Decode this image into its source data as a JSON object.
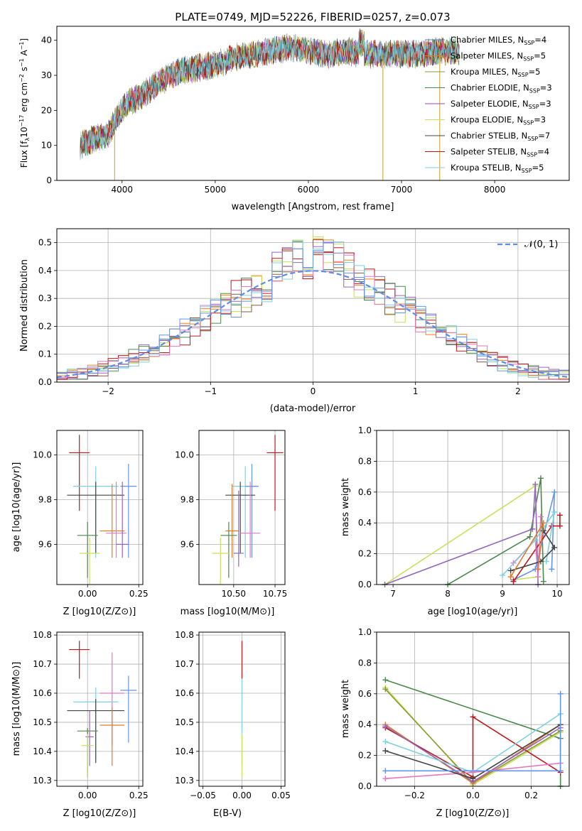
{
  "chart_data": [
    {
      "type": "line",
      "title": "PLATE=0749, MJD=52226, FIBERID=0257, z=0.073",
      "xlabel": "wavelength [Angstrom, rest frame]",
      "ylabel": "Flux [f_λ 10^-17 erg cm^-2 s^-1 A^-1]",
      "xlim": [
        3300,
        8800
      ],
      "ylim": [
        0,
        44
      ],
      "xticks": [
        "4000",
        "5000",
        "6000",
        "7000",
        "8000"
      ],
      "yticks": [
        "0",
        "10",
        "20",
        "30",
        "40"
      ],
      "continuum_anchors": [
        [
          3550,
          10
        ],
        [
          3700,
          12
        ],
        [
          3850,
          13
        ],
        [
          3950,
          18
        ],
        [
          4050,
          22
        ],
        [
          4200,
          24
        ],
        [
          4400,
          28
        ],
        [
          4600,
          31
        ],
        [
          4800,
          32
        ],
        [
          5000,
          33
        ],
        [
          5200,
          35
        ],
        [
          5400,
          36
        ],
        [
          5600,
          37
        ],
        [
          5800,
          38
        ],
        [
          6000,
          37
        ],
        [
          6200,
          36
        ],
        [
          6400,
          37
        ],
        [
          6600,
          36
        ],
        [
          6800,
          36
        ],
        [
          7000,
          36
        ],
        [
          7200,
          36
        ],
        [
          7400,
          37
        ],
        [
          7600,
          37
        ]
      ],
      "spikes": [
        {
          "x": 3920,
          "y": 0
        },
        {
          "x": 6800,
          "y": 0
        },
        {
          "x": 7410,
          "y": 0
        },
        {
          "x": 6580,
          "y": 43
        }
      ],
      "legend_position": "upper right",
      "legend": [
        {
          "name": "Chabrier MILES, N",
          "sub": "SSP",
          "suffix": "=4"
        },
        {
          "name": "Salpeter MILES, N",
          "sub": "SSP",
          "suffix": "=5"
        },
        {
          "name": "Kroupa MILES, N",
          "sub": "SSP",
          "suffix": "=5"
        },
        {
          "name": "Chabrier ELODIE, N",
          "sub": "SSP",
          "suffix": "=3"
        },
        {
          "name": "Salpeter ELODIE, N",
          "sub": "SSP",
          "suffix": "=3"
        },
        {
          "name": "Kroupa ELODIE, N",
          "sub": "SSP",
          "suffix": "=3"
        },
        {
          "name": "Chabrier STELIB, N",
          "sub": "SSP",
          "suffix": "=7"
        },
        {
          "name": "Salpeter STELIB, N",
          "sub": "SSP",
          "suffix": "=4"
        },
        {
          "name": "Kroupa STELIB, N",
          "sub": "SSP",
          "suffix": "=5"
        }
      ],
      "colors": [
        "#4a7fbf",
        "#e07b2a",
        "#8a9a3a",
        "#4c8a4c",
        "#9a44c4",
        "#c8e05a",
        "#444444",
        "#c01818",
        "#7fd0e0"
      ]
    },
    {
      "type": "line",
      "xlabel": "(data-model)/error",
      "ylabel": "Normed distribution",
      "xlim": [
        -2.5,
        2.5
      ],
      "ylim": [
        0,
        0.55
      ],
      "xticks": [
        "−2",
        "−1",
        "0",
        "1",
        "2"
      ],
      "yticks": [
        "0.0",
        "0.1",
        "0.2",
        "0.3",
        "0.4",
        "0.5"
      ],
      "grid": true,
      "legend": "𝒩(0, 1)",
      "legend_position": "upper right",
      "bin_width": 0.1,
      "hist_colors": [
        "#ff7f0e",
        "#c8e05a",
        "#8c564b",
        "#9467bd",
        "#4c8a4c",
        "#c01818",
        "#e377c2",
        "#7fd0e0",
        "#6495ed"
      ]
    },
    {
      "type": "scatter",
      "xlabel": "Z [log10(Z/Z⊙)]",
      "ylabel": "age [log10(age/yr)]",
      "xlim": [
        -0.15,
        0.27
      ],
      "ylim": [
        9.42,
        10.11
      ],
      "xticks": [
        "0.00",
        "0.25"
      ],
      "yticks": [
        "9.6",
        "9.8",
        "10.0"
      ],
      "points": [
        {
          "x": -0.04,
          "y": 10.01,
          "xerr": 0.05,
          "yerr_lo": 0.26,
          "yerr_hi": 0.08,
          "color": "#c01818"
        },
        {
          "x": 0.04,
          "y": 9.86,
          "xerr": 0.11,
          "yerr_lo": 0.32,
          "yerr_hi": 0.09,
          "color": "#7fd0e0"
        },
        {
          "x": 0.2,
          "y": 9.86,
          "xerr": 0.04,
          "yerr_lo": 0.32,
          "yerr_hi": 0.1,
          "color": "#6495ed"
        },
        {
          "x": 0.04,
          "y": 9.82,
          "xerr": 0.14,
          "yerr_lo": 0.26,
          "yerr_hi": 0.06,
          "color": "#444444"
        },
        {
          "x": 0.12,
          "y": 9.66,
          "xerr": 0.06,
          "yerr_lo": 0.12,
          "yerr_hi": 0.21,
          "color": "#e07b2a"
        },
        {
          "x": 0.14,
          "y": 9.65,
          "xerr": 0.05,
          "yerr_lo": 0.11,
          "yerr_hi": 0.23,
          "color": "#e377c2"
        },
        {
          "x": 0.0,
          "y": 9.64,
          "xerr": 0.05,
          "yerr_lo": 0.19,
          "yerr_hi": 0.06,
          "color": "#4c8a4c"
        },
        {
          "x": 0.17,
          "y": 9.6,
          "xerr": 0.03,
          "yerr_lo": 0.06,
          "yerr_hi": 0.28,
          "color": "#9467bd"
        },
        {
          "x": 0.01,
          "y": 9.56,
          "xerr": 0.05,
          "yerr_lo": 0.14,
          "yerr_hi": 0.07,
          "color": "#c8e05a"
        }
      ]
    },
    {
      "type": "scatter",
      "xlabel": "mass [log10(M/M⊙)]",
      "xlim": [
        10.29,
        10.81
      ],
      "ylim": [
        9.42,
        10.11
      ],
      "xticks": [
        "10.50",
        "10.75"
      ],
      "yticks": [
        "9.6",
        "9.8",
        "10.0"
      ],
      "points": [
        {
          "x": 10.75,
          "y": 10.01,
          "xerr": 0.05,
          "yerr_lo": 0.26,
          "yerr_hi": 0.08,
          "color": "#c01818"
        },
        {
          "x": 10.57,
          "y": 9.86,
          "xerr": 0.08,
          "yerr_lo": 0.32,
          "yerr_hi": 0.09,
          "color": "#7fd0e0"
        },
        {
          "x": 10.61,
          "y": 9.86,
          "xerr": 0.04,
          "yerr_lo": 0.32,
          "yerr_hi": 0.1,
          "color": "#6495ed"
        },
        {
          "x": 10.54,
          "y": 9.82,
          "xerr": 0.09,
          "yerr_lo": 0.26,
          "yerr_hi": 0.06,
          "color": "#444444"
        },
        {
          "x": 10.49,
          "y": 9.66,
          "xerr": 0.04,
          "yerr_lo": 0.12,
          "yerr_hi": 0.21,
          "color": "#e07b2a"
        },
        {
          "x": 10.6,
          "y": 9.65,
          "xerr": 0.06,
          "yerr_lo": 0.11,
          "yerr_hi": 0.23,
          "color": "#e377c2"
        },
        {
          "x": 10.47,
          "y": 9.64,
          "xerr": 0.05,
          "yerr_lo": 0.19,
          "yerr_hi": 0.06,
          "color": "#4c8a4c"
        },
        {
          "x": 10.53,
          "y": 9.56,
          "xerr": 0.03,
          "yerr_lo": 0.06,
          "yerr_hi": 0.28,
          "color": "#9467bd"
        },
        {
          "x": 10.42,
          "y": 9.56,
          "xerr": 0.05,
          "yerr_lo": 0.14,
          "yerr_hi": 0.07,
          "color": "#c8e05a"
        }
      ]
    },
    {
      "type": "line",
      "xlabel": "age [log10(age/yr)]",
      "ylabel": "mass weight",
      "xlim": [
        6.7,
        10.22
      ],
      "ylim": [
        0,
        1
      ],
      "xticks": [
        "7",
        "8",
        "9",
        "10"
      ],
      "yticks": [
        "0.0",
        "0.2",
        "0.4",
        "0.6",
        "0.8",
        "1.0"
      ],
      "grid": true,
      "series": [
        {
          "color": "#4c8a4c",
          "points": [
            [
              8.0,
              0.0
            ],
            [
              9.5,
              0.31
            ],
            [
              9.7,
              0.69
            ],
            [
              9.75,
              0.02
            ]
          ]
        },
        {
          "color": "#c8e05a",
          "points": [
            [
              6.85,
              0.0
            ],
            [
              9.6,
              0.64
            ],
            [
              9.65,
              0.05
            ],
            [
              9.2,
              0.03
            ]
          ]
        },
        {
          "color": "#9467bd",
          "points": [
            [
              6.85,
              0.0
            ],
            [
              9.55,
              0.36
            ],
            [
              9.6,
              0.65
            ],
            [
              9.65,
              0.0
            ]
          ]
        },
        {
          "color": "#6495ed",
          "points": [
            [
              9.2,
              0.03
            ],
            [
              9.6,
              0.1
            ],
            [
              9.95,
              0.6
            ],
            [
              9.9,
              0.1
            ]
          ]
        },
        {
          "color": "#c01818",
          "points": [
            [
              9.2,
              0.02
            ],
            [
              9.9,
              0.38
            ],
            [
              10.05,
              0.38
            ],
            [
              10.05,
              0.45
            ]
          ]
        },
        {
          "color": "#e377c2",
          "points": [
            [
              9.2,
              0.14
            ],
            [
              9.6,
              0.29
            ],
            [
              9.65,
              0.05
            ],
            [
              9.7,
              0.44
            ]
          ]
        },
        {
          "color": "#7fd0e0",
          "points": [
            [
              9.0,
              0.06
            ],
            [
              9.6,
              0.29
            ],
            [
              9.95,
              0.47
            ],
            [
              9.8,
              0.15
            ]
          ]
        },
        {
          "color": "#444444",
          "points": [
            [
              9.15,
              0.09
            ],
            [
              9.7,
              0.15
            ],
            [
              9.95,
              0.24
            ],
            [
              9.75,
              0.35
            ]
          ]
        },
        {
          "color": "#e07b2a",
          "points": [
            [
              9.15,
              0.05
            ],
            [
              9.75,
              0.4
            ],
            [
              9.65,
              0.1
            ]
          ]
        }
      ]
    },
    {
      "type": "scatter",
      "xlabel": "Z [log10(Z/Z⊙)]",
      "ylabel": "mass [log10(M/M⊙)]",
      "xlim": [
        -0.15,
        0.27
      ],
      "ylim": [
        10.28,
        10.81
      ],
      "xticks": [
        "0.00",
        "0.25"
      ],
      "yticks": [
        "10.3",
        "10.4",
        "10.5",
        "10.6",
        "10.7",
        "10.8"
      ],
      "points": [
        {
          "x": -0.04,
          "y": 10.75,
          "xerr": 0.05,
          "yerr_lo": 0.1,
          "yerr_hi": 0.03,
          "color": "#c01818"
        },
        {
          "x": 0.2,
          "y": 10.61,
          "xerr": 0.04,
          "yerr_lo": 0.18,
          "yerr_hi": 0.05,
          "color": "#6495ed"
        },
        {
          "x": 0.12,
          "y": 10.6,
          "xerr": 0.06,
          "yerr_lo": 0.18,
          "yerr_hi": 0.14,
          "color": "#e377c2"
        },
        {
          "x": 0.04,
          "y": 10.57,
          "xerr": 0.11,
          "yerr_lo": 0.2,
          "yerr_hi": 0.05,
          "color": "#7fd0e0"
        },
        {
          "x": 0.04,
          "y": 10.54,
          "xerr": 0.14,
          "yerr_lo": 0.18,
          "yerr_hi": 0.04,
          "color": "#444444"
        },
        {
          "x": 0.12,
          "y": 10.49,
          "xerr": 0.06,
          "yerr_lo": 0.14,
          "yerr_hi": 0.06,
          "color": "#e07b2a"
        },
        {
          "x": 0.0,
          "y": 10.47,
          "xerr": 0.05,
          "yerr_lo": 0.16,
          "yerr_hi": 0.01,
          "color": "#4c8a4c"
        },
        {
          "x": 0.01,
          "y": 10.45,
          "xerr": 0.02,
          "yerr_lo": 0.1,
          "yerr_hi": 0.09,
          "color": "#9467bd"
        },
        {
          "x": 0.0,
          "y": 10.42,
          "xerr": 0.03,
          "yerr_lo": 0.11,
          "yerr_hi": 0.04,
          "color": "#c8e05a"
        }
      ]
    },
    {
      "type": "scatter",
      "xlabel": "E(B-V)",
      "xlim": [
        -0.055,
        0.055
      ],
      "ylim": [
        10.28,
        10.81
      ],
      "xticks": [
        "−0.05",
        "0.00",
        "0.05"
      ],
      "yticks": [
        "10.3",
        "10.4",
        "10.5",
        "10.6",
        "10.7",
        "10.8"
      ],
      "points": [
        {
          "x": 0.0,
          "y": 10.75,
          "xerr": 0,
          "yerr_lo": 0.1,
          "yerr_hi": 0.03,
          "color": "#c01818"
        },
        {
          "x": 0.0,
          "y": 10.55,
          "xerr": 0,
          "yerr_lo": 0.2,
          "yerr_hi": 0.1,
          "color": "#7fd0e0"
        },
        {
          "x": 0.0,
          "y": 10.42,
          "xerr": 0,
          "yerr_lo": 0.11,
          "yerr_hi": 0.04,
          "color": "#c8e05a"
        }
      ]
    },
    {
      "type": "line",
      "xlabel": "Z [log10(Z/Z⊙)]",
      "ylabel": "mass weight",
      "xlim": [
        -0.33,
        0.33
      ],
      "ylim": [
        0,
        1
      ],
      "xticks": [
        "−0.2",
        "0.0",
        "0.2"
      ],
      "yticks": [
        "0.0",
        "0.2",
        "0.4",
        "0.6",
        "0.8",
        "1.0"
      ],
      "grid": true,
      "series": [
        {
          "color": "#4c8a4c",
          "points": [
            [
              -0.3,
              0.69
            ],
            [
              0.3,
              0.31
            ],
            [
              0.3,
              0.0
            ]
          ]
        },
        {
          "color": "#c8e05a",
          "points": [
            [
              -0.3,
              0.64
            ],
            [
              0.0,
              0.01
            ],
            [
              0.3,
              0.35
            ]
          ]
        },
        {
          "color": "#8c9a3a",
          "points": [
            [
              -0.3,
              0.63
            ],
            [
              0.0,
              0.02
            ],
            [
              0.3,
              0.36
            ]
          ]
        },
        {
          "color": "#e07b2a",
          "points": [
            [
              -0.3,
              0.4
            ],
            [
              0.0,
              0.02
            ],
            [
              0.3,
              0.4
            ],
            [
              0.3,
              0.1
            ]
          ]
        },
        {
          "color": "#c01818",
          "points": [
            [
              -0.3,
              0.38
            ],
            [
              0.0,
              0.06
            ],
            [
              0.0,
              0.45
            ],
            [
              0.3,
              0.09
            ]
          ]
        },
        {
          "color": "#9467bd",
          "points": [
            [
              -0.3,
              0.39
            ],
            [
              0.0,
              0.03
            ],
            [
              0.3,
              0.38
            ]
          ]
        },
        {
          "color": "#7fd0e0",
          "points": [
            [
              -0.3,
              0.29
            ],
            [
              0.0,
              0.09
            ],
            [
              0.3,
              0.47
            ]
          ]
        },
        {
          "color": "#e377c2",
          "points": [
            [
              -0.3,
              0.05
            ],
            [
              0.0,
              0.09
            ],
            [
              0.3,
              0.15
            ]
          ]
        },
        {
          "color": "#444444",
          "points": [
            [
              -0.3,
              0.23
            ],
            [
              0.0,
              0.05
            ],
            [
              0.3,
              0.4
            ]
          ]
        },
        {
          "color": "#6495ed",
          "points": [
            [
              -0.3,
              0.1
            ],
            [
              0.3,
              0.1
            ],
            [
              0.3,
              0.6
            ]
          ]
        }
      ]
    }
  ]
}
